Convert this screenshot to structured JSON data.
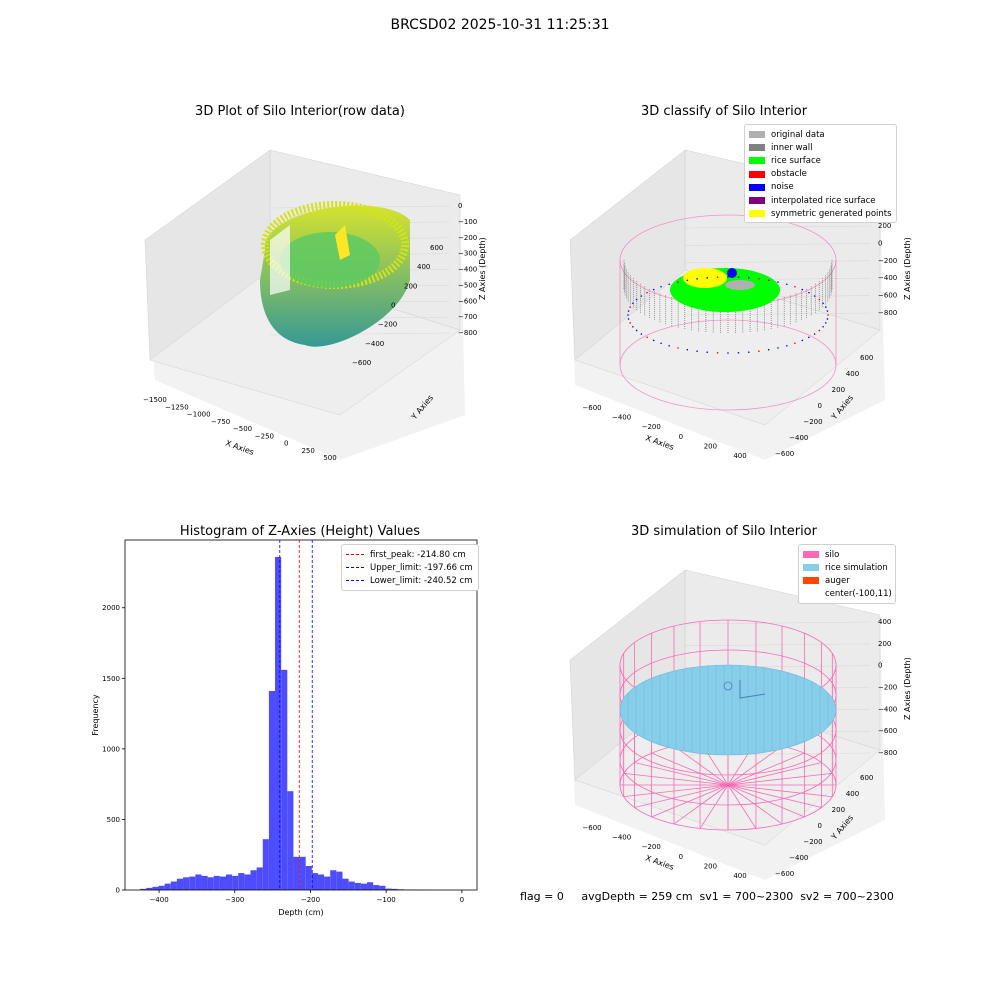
{
  "suptitle": "BRCSD02 2025-10-31 11:25:31",
  "colors": {
    "raw_low": "#21908c",
    "raw_high": "#d2e21b",
    "original": "#b0b0b0",
    "inner_wall": "#808080",
    "rice_surface": "#00ff00",
    "obstacle": "#ff0000",
    "noise": "#0000ff",
    "interpolated": "#800080",
    "symmetric": "#ffff00",
    "silo": "#ff69b4",
    "rice_sim": "#87ceeb",
    "auger": "#ff4500",
    "hist_bar": "#4d4dff",
    "first_peak_line": "#ff0000",
    "limit_line": "#0000ff"
  },
  "panel_raw": {
    "title": "3D Plot of Silo Interior(row data)",
    "x_label": "X Axies",
    "y_label": "Y Axies",
    "z_label": "Z Axies (Depth)",
    "x_ticks": [
      "−1500",
      "−1250",
      "−1000",
      "−750",
      "−500",
      "−250",
      "0",
      "250",
      "500"
    ],
    "y_ticks": [
      "−600",
      "−400",
      "−200",
      "0",
      "200",
      "400",
      "600"
    ],
    "z_ticks": [
      "0",
      "−100",
      "−200",
      "−300",
      "−400",
      "−500",
      "−600",
      "−700",
      "−800"
    ]
  },
  "panel_classify": {
    "title": "3D classify of Silo Interior",
    "x_label": "X Axies",
    "y_label": "Y Axies",
    "z_label": "Z Axies (Depth)",
    "x_ticks": [
      "−600",
      "−400",
      "−200",
      "0",
      "200",
      "400"
    ],
    "y_ticks": [
      "−600",
      "−400",
      "−200",
      "0",
      "200",
      "400",
      "600"
    ],
    "z_ticks": [
      "200",
      "0",
      "−200",
      "−400",
      "−600",
      "−800"
    ],
    "legend": [
      {
        "label": "original data",
        "color": "#b0b0b0"
      },
      {
        "label": "inner wall",
        "color": "#808080"
      },
      {
        "label": "rice surface",
        "color": "#00ff00"
      },
      {
        "label": "obstacle",
        "color": "#ff0000"
      },
      {
        "label": "noise",
        "color": "#0000ff"
      },
      {
        "label": "interpolated rice surface",
        "color": "#800080"
      },
      {
        "label": "symmetric generated points",
        "color": "#ffff00"
      }
    ]
  },
  "panel_sim": {
    "title": "3D simulation of Silo Interior",
    "x_label": "X Axies",
    "y_label": "Y Axies",
    "z_label": "Z Axies (Depth)",
    "x_ticks": [
      "−600",
      "−400",
      "−200",
      "0",
      "200",
      "400"
    ],
    "y_ticks": [
      "−600",
      "−400",
      "−200",
      "0",
      "200",
      "400",
      "600"
    ],
    "z_ticks": [
      "400",
      "200",
      "0",
      "−200",
      "−400",
      "−600",
      "−800"
    ],
    "legend": [
      {
        "label": "silo",
        "color": "#ff69b4"
      },
      {
        "label": "rice simulation",
        "color": "#87ceeb"
      },
      {
        "label": "auger",
        "color": "#ff4500"
      },
      {
        "label": "center(-100,11)",
        "color": ""
      }
    ]
  },
  "chart_data": {
    "type": "bar",
    "title": "Histogram of Z-Axies (Height) Values",
    "xlabel": "Depth (cm)",
    "ylabel": "Frequency",
    "xlim": [
      -445,
      20
    ],
    "ylim": [
      0,
      2480
    ],
    "x_ticks": [
      -400,
      -300,
      -200,
      -100,
      0
    ],
    "x_tick_labels": [
      "−400",
      "−300",
      "−200",
      "−100",
      "0"
    ],
    "y_ticks": [
      0,
      500,
      1000,
      1500,
      2000
    ],
    "y_tick_labels": [
      "0",
      "500",
      "1000",
      "1500",
      "2000"
    ],
    "bin_width": 8.1,
    "bin_starts": [
      -425,
      -416.9,
      -408.8,
      -400.7,
      -392.6,
      -384.5,
      -376.4,
      -368.3,
      -360.2,
      -352.1,
      -344,
      -335.9,
      -327.8,
      -319.7,
      -311.6,
      -303.5,
      -295.4,
      -287.3,
      -279.2,
      -271.1,
      -263,
      -254.9,
      -246.8,
      -238.7,
      -230.6,
      -222.5,
      -214.4,
      -206.3,
      -198.2,
      -190.1,
      -182,
      -173.9,
      -165.8,
      -157.7,
      -149.6,
      -141.5,
      -133.4,
      -125.3,
      -117.2,
      -109.1,
      -101,
      -92.9,
      -84.8,
      -76.7,
      -68.6,
      -60.5,
      -52.4,
      -44.3,
      -36.2,
      -28.1,
      -20
    ],
    "counts": [
      8,
      15,
      22,
      30,
      45,
      60,
      80,
      90,
      95,
      110,
      100,
      90,
      100,
      95,
      110,
      100,
      120,
      110,
      140,
      160,
      360,
      1410,
      2360,
      1560,
      700,
      235,
      235,
      170,
      120,
      110,
      95,
      140,
      130,
      80,
      60,
      50,
      45,
      55,
      35,
      30,
      10,
      8,
      5,
      3,
      2,
      2,
      1,
      0,
      0,
      0,
      0
    ],
    "counts_note": "",
    "vlines": [
      {
        "x": -214.8,
        "label": "first_peak: -214.80 cm",
        "color": "#ff0000"
      },
      {
        "x": -197.66,
        "label": "Upper_limit: -197.66 cm",
        "color": "#0000ff"
      },
      {
        "x": -240.52,
        "label": "Lower_limit: -240.52 cm",
        "color": "#0000ff"
      }
    ],
    "legend_position": "upper right"
  },
  "footer": {
    "flag": "flag = 0",
    "stats": "avgDepth = 259 cm  sv1 = 700~2300  sv2 = 700~2300"
  }
}
